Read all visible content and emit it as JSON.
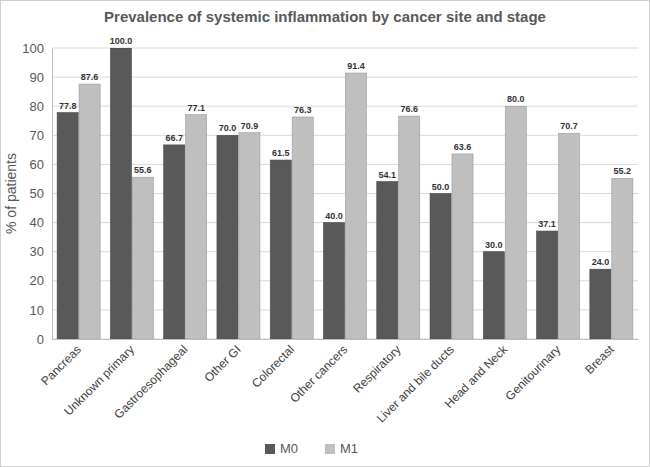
{
  "chart_data": {
    "type": "bar",
    "title": "Prevalence of systemic inflammation by cancer site and stage",
    "y_label": "% of patients",
    "categories": [
      "Pancreas",
      "Unknown primary",
      "Gastroesophageal",
      "Other GI",
      "Colorectal",
      "Other cancers",
      "Respiratory",
      "Liver and bile ducts",
      "Head and Neck",
      "Genitourinary",
      "Breast"
    ],
    "series": [
      {
        "name": "M0",
        "color": "#595959",
        "values": [
          77.8,
          100.0,
          66.7,
          70.0,
          61.5,
          40.0,
          54.1,
          50.0,
          30.0,
          37.1,
          24.0
        ],
        "value_labels": [
          "77.8",
          "100.0",
          "66.7",
          "70.0",
          "61.5",
          "40.0",
          "54.1",
          "50.0",
          "30.0",
          "37.1",
          "24.0"
        ]
      },
      {
        "name": "M1",
        "color": "#bfbfbf",
        "values": [
          87.6,
          55.6,
          77.1,
          70.9,
          76.3,
          91.4,
          76.6,
          63.6,
          80.0,
          70.7,
          55.2
        ],
        "value_labels": [
          "87.6",
          "55.6",
          "77.1",
          "70.9",
          "76.3",
          "91.4",
          "76.6",
          "63.6",
          "80.0",
          "70.7",
          "55.2"
        ]
      }
    ],
    "ylim": [
      0,
      100
    ],
    "yticks": [
      0,
      10,
      20,
      30,
      40,
      50,
      60,
      70,
      80,
      90,
      100
    ],
    "grid": true,
    "legend": "bottom",
    "data_labels": true
  }
}
